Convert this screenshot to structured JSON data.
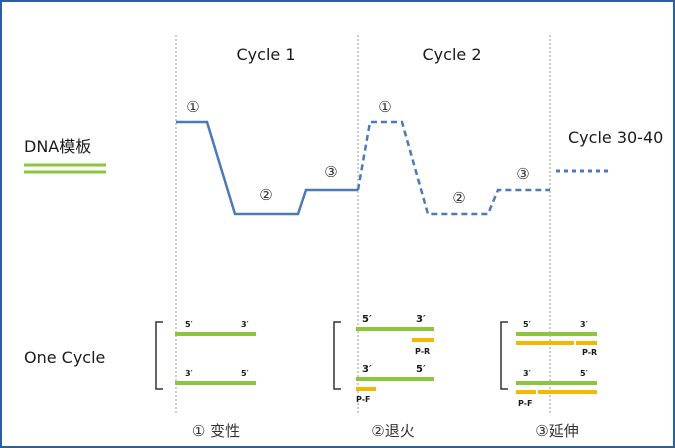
{
  "cycles": {
    "cycle1": "Cycle 1",
    "cycle2": "Cycle 2",
    "cycle3040": "Cycle 30-40"
  },
  "left_labels": {
    "template": "DNA模板",
    "one_cycle": "One Cycle"
  },
  "step_markers": {
    "denature": "①",
    "anneal": "②",
    "extend": "③"
  },
  "strand_ends": {
    "five": "5′",
    "three": "3′"
  },
  "primers": {
    "reverse": "P-R",
    "forward": "P-F"
  },
  "step_captions": {
    "denature": "① 变性",
    "anneal": "②退火",
    "extend": "③延伸"
  },
  "colors": {
    "frame": "#2f5f9a",
    "profile": "#4a7ab8",
    "template_green": "#8cc63f",
    "primer_yellow": "#f5b800",
    "divider": "#9a9a9a"
  }
}
